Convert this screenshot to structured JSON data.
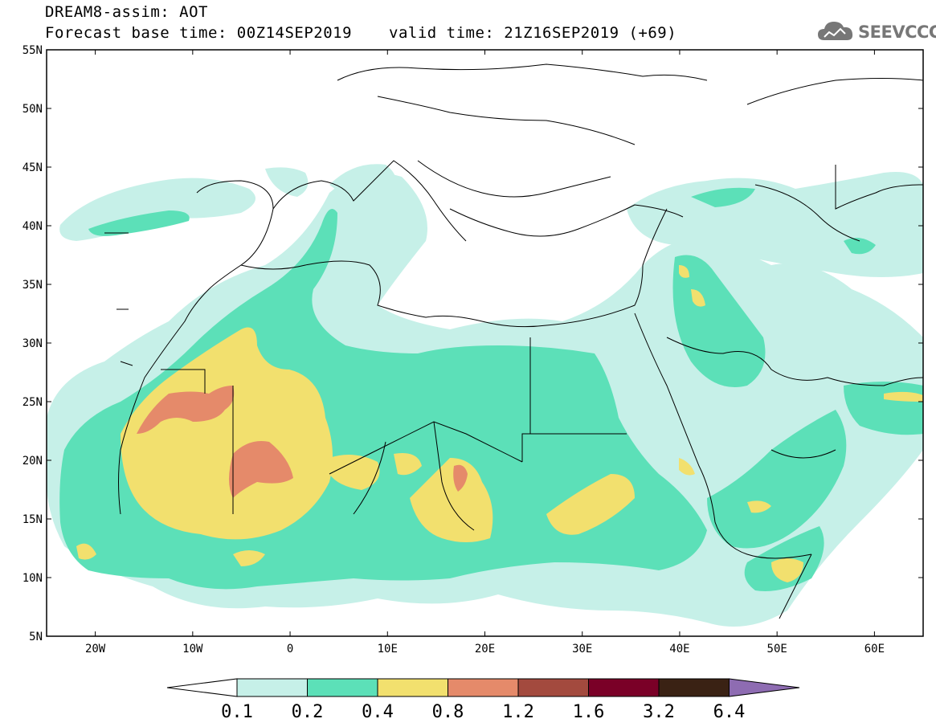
{
  "header": {
    "title": "DREAM8-assim: AOT",
    "base_time": "Forecast base time: 00Z14SEP2019",
    "valid_time": "valid time: 21Z16SEP2019 (+69)"
  },
  "logo": {
    "text": "SEEVCCC",
    "icon": "cloud-icon",
    "color": "#777777"
  },
  "map": {
    "lon_range": [
      -25,
      65
    ],
    "lat_range": [
      5,
      55
    ],
    "lat_ticks": [
      "55N",
      "50N",
      "45N",
      "40N",
      "35N",
      "30N",
      "25N",
      "20N",
      "15N",
      "10N",
      "5N"
    ],
    "lon_ticks": [
      "20W",
      "10W",
      "0",
      "10E",
      "20E",
      "30E",
      "40E",
      "50E",
      "60E"
    ],
    "colors": {
      "c01": "#c6f0e8",
      "c02": "#5ce0b8",
      "c04": "#f2e06e",
      "c08": "#e58a6a",
      "c12": "#a34a3e",
      "c16": "#7a0027",
      "c32": "#3a2214",
      "c64": "#8e6cb2"
    }
  },
  "colorbar": {
    "labels": [
      "0.1",
      "0.2",
      "0.4",
      "0.8",
      "1.2",
      "1.6",
      "3.2",
      "6.4"
    ]
  }
}
